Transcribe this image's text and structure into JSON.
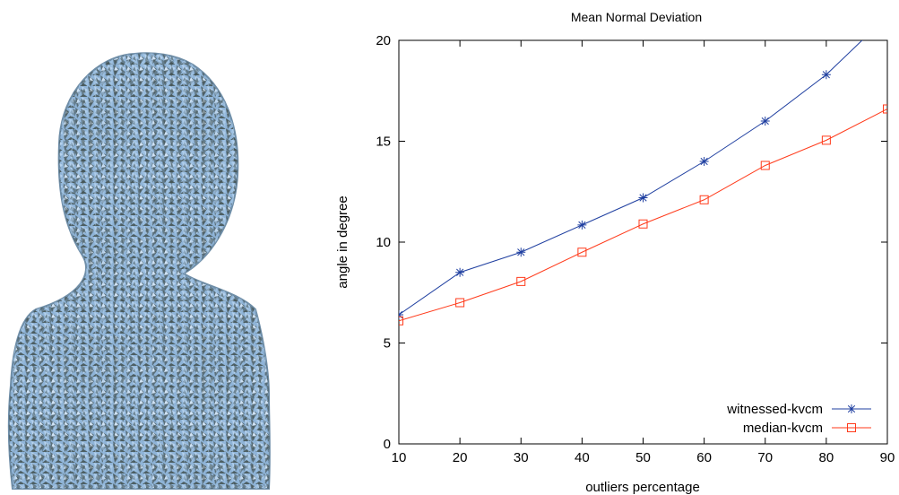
{
  "left_image": {
    "icon": "noisy-bust-mesh-render"
  },
  "chart_data": {
    "type": "line",
    "title": "Mean Normal Deviation",
    "xlabel": "outliers percentage",
    "ylabel": "angle in degree",
    "xlim": [
      10,
      90
    ],
    "ylim": [
      0,
      20
    ],
    "xticks": [
      10,
      20,
      30,
      40,
      50,
      60,
      70,
      80,
      90
    ],
    "yticks": [
      0,
      5,
      10,
      15,
      20
    ],
    "legend_position": "bottom-right",
    "grid": false,
    "series": [
      {
        "name": "witnessed-kvcm",
        "color": "#1f3fa0",
        "marker": "asterisk",
        "x": [
          10,
          20,
          30,
          40,
          50,
          60,
          70,
          80,
          90
        ],
        "y": [
          6.4,
          8.5,
          9.5,
          10.85,
          12.2,
          14.0,
          16.0,
          18.3,
          21.2
        ]
      },
      {
        "name": "median-kvcm",
        "color": "#ff3a1a",
        "marker": "square",
        "x": [
          10,
          20,
          30,
          40,
          50,
          60,
          70,
          80,
          90
        ],
        "y": [
          6.1,
          7.0,
          8.05,
          9.5,
          10.9,
          12.1,
          13.8,
          15.05,
          16.6
        ]
      }
    ]
  }
}
